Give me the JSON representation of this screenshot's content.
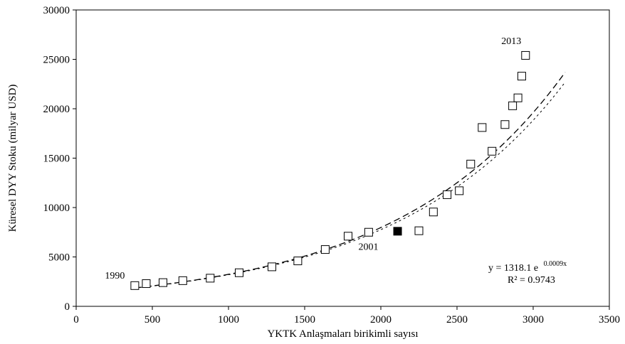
{
  "chart_data": {
    "type": "scatter",
    "title": "",
    "xlabel": "YKTK Anlaşmaları birikimli sayısı",
    "ylabel": "Küresel DYY Stoku (milyar USD)",
    "xlim": [
      0,
      3500
    ],
    "ylim": [
      0,
      30000
    ],
    "xticks": [
      "0",
      "500",
      "1000",
      "1500",
      "2000",
      "2500",
      "3000",
      "3500"
    ],
    "yticks": [
      "0",
      "5000",
      "10000",
      "15000",
      "20000",
      "25000",
      "30000"
    ],
    "grid": false,
    "legend": "none",
    "points": [
      {
        "x": 385,
        "y": 2100
      },
      {
        "x": 460,
        "y": 2300
      },
      {
        "x": 570,
        "y": 2400
      },
      {
        "x": 700,
        "y": 2600
      },
      {
        "x": 880,
        "y": 2850
      },
      {
        "x": 1070,
        "y": 3400
      },
      {
        "x": 1285,
        "y": 4000
      },
      {
        "x": 1455,
        "y": 4600
      },
      {
        "x": 1635,
        "y": 5750
      },
      {
        "x": 1785,
        "y": 7100
      },
      {
        "x": 1920,
        "y": 7500
      },
      {
        "x": 2110,
        "y": 7600,
        "highlight": true
      },
      {
        "x": 2250,
        "y": 7650
      },
      {
        "x": 2345,
        "y": 9550
      },
      {
        "x": 2435,
        "y": 11300
      },
      {
        "x": 2515,
        "y": 11700
      },
      {
        "x": 2590,
        "y": 14400
      },
      {
        "x": 2665,
        "y": 18100
      },
      {
        "x": 2730,
        "y": 15700
      },
      {
        "x": 2815,
        "y": 18400
      },
      {
        "x": 2865,
        "y": 20300
      },
      {
        "x": 2900,
        "y": 21100
      },
      {
        "x": 2925,
        "y": 23300
      },
      {
        "x": 2950,
        "y": 25400
      }
    ],
    "annotations": [
      {
        "text": "1990",
        "x": 385,
        "y": 2100
      },
      {
        "text": "2001",
        "x": 2110,
        "y": 7600
      },
      {
        "text": "2013",
        "x": 2950,
        "y": 25400
      }
    ],
    "trendline": {
      "type": "exponential",
      "a": 1318.1,
      "b": 0.0009,
      "x_range": [
        385,
        3210
      ],
      "equation_main": "y = 1318.1  e",
      "equation_exp": "0.0009x",
      "r2_label": "R² = 0.9743"
    },
    "series_colors": {
      "marker_stroke": "#000000",
      "marker_fill": "#ffffff",
      "highlight_fill": "#000000",
      "trend": "#000000"
    }
  }
}
